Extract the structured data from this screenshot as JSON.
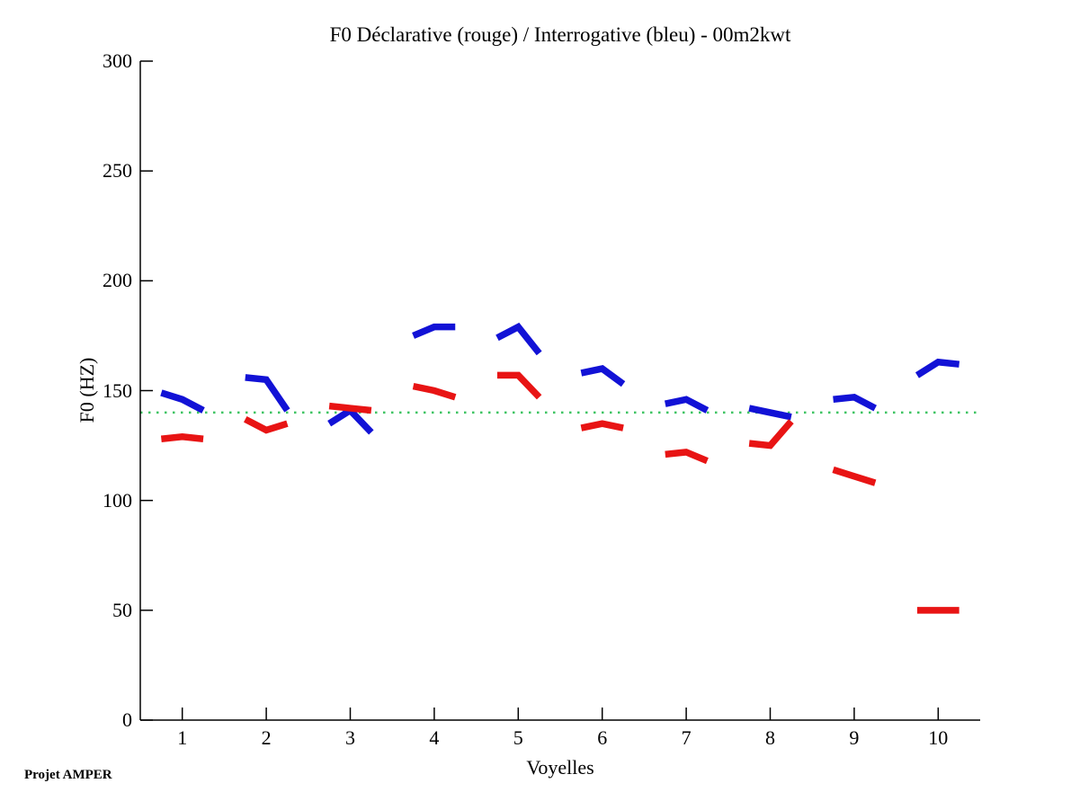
{
  "annotation": "Projet AMPER",
  "colors": {
    "background": "#ffffff",
    "axis": "#000000",
    "declarative_red": "#e81414",
    "interrogative_blue": "#1212d6",
    "reference_green": "#3fc463"
  },
  "chart_data": {
    "type": "line",
    "title": "F0 Déclarative (rouge) / Interrogative (bleu) - 00m2kwt",
    "xlabel": "Voyelles",
    "ylabel": "F0 (HZ)",
    "xlim": [
      0.5,
      10.5
    ],
    "ylim": [
      0,
      300
    ],
    "xticks": [
      1,
      2,
      3,
      4,
      5,
      6,
      7,
      8,
      9,
      10
    ],
    "yticks": [
      0,
      50,
      100,
      150,
      200,
      250,
      300
    ],
    "grid": false,
    "legend_position": "none",
    "reference_line": {
      "y": 140,
      "color": "#3fc463",
      "style": "dotted"
    },
    "segment_half_width": 0.25,
    "categories": [
      1,
      2,
      3,
      4,
      5,
      6,
      7,
      8,
      9,
      10
    ],
    "series": [
      {
        "name": "Interrogative (bleu)",
        "color": "#1212d6",
        "segments": [
          [
            149,
            146,
            141
          ],
          [
            156,
            155,
            141
          ],
          [
            135,
            141,
            131
          ],
          [
            175,
            179,
            179
          ],
          [
            174,
            179,
            167
          ],
          [
            158,
            160,
            153
          ],
          [
            144,
            146,
            141
          ],
          [
            142,
            140,
            138
          ],
          [
            146,
            147,
            142
          ],
          [
            157,
            163,
            162
          ]
        ]
      },
      {
        "name": "Déclarative (rouge)",
        "color": "#e81414",
        "segments": [
          [
            128,
            129,
            128
          ],
          [
            137,
            132,
            135
          ],
          [
            143,
            142,
            141
          ],
          [
            152,
            150,
            147
          ],
          [
            157,
            157,
            147
          ],
          [
            133,
            135,
            133
          ],
          [
            121,
            122,
            118
          ],
          [
            126,
            125,
            136
          ],
          [
            114,
            111,
            108
          ],
          [
            50,
            50,
            50
          ]
        ]
      }
    ]
  }
}
